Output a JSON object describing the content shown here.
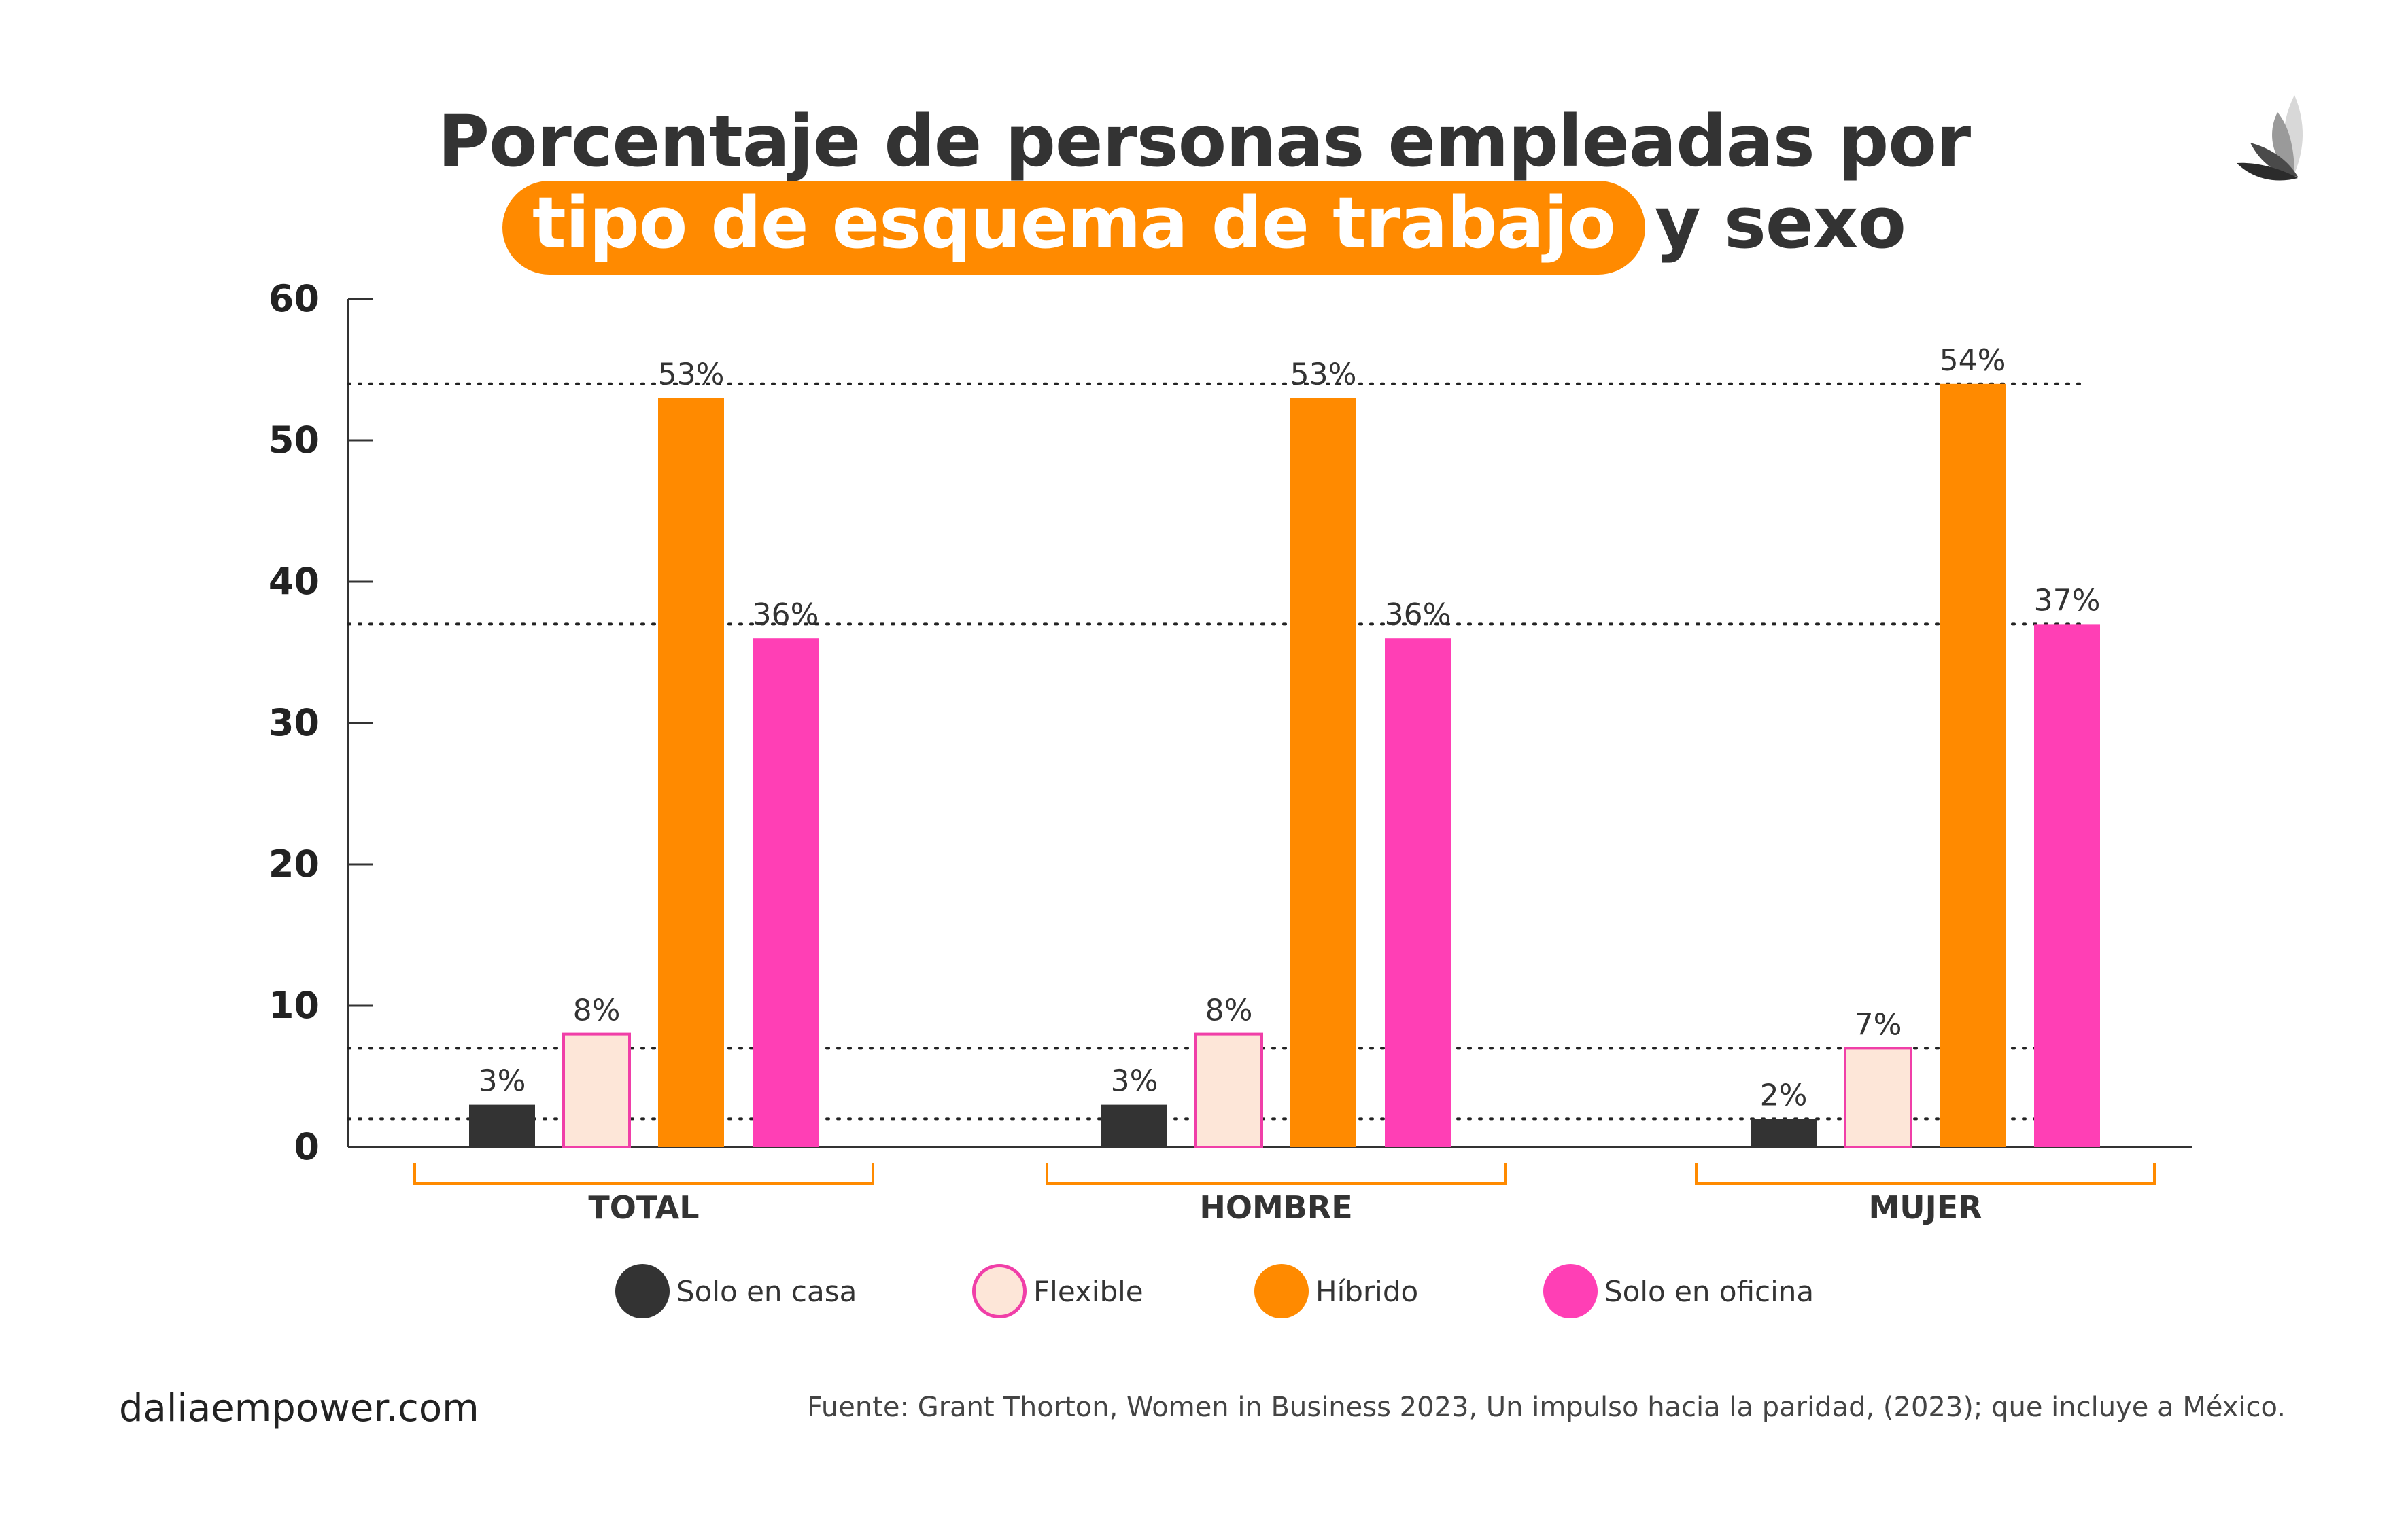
{
  "title": {
    "line1": "Porcentaje de personas empleadas por",
    "highlight": "tipo de esquema de trabajo",
    "rest": "y sexo"
  },
  "colors": {
    "solo_en_casa": "#333333",
    "flexible_fill": "#fde6d8",
    "flexible_stroke": "#f03fa8",
    "hibrido": "#ff8a00",
    "solo_en_oficina": "#ff3fb5",
    "accent": "#ff8a00"
  },
  "chart_data": {
    "type": "bar",
    "categories": [
      "TOTAL",
      "HOMBRE",
      "MUJER"
    ],
    "series": [
      {
        "name": "Solo en casa",
        "values": [
          3,
          3,
          2
        ],
        "labels": [
          "3%",
          "3%",
          "2%"
        ]
      },
      {
        "name": "Flexible",
        "values": [
          8,
          8,
          7
        ],
        "labels": [
          "8%",
          "8%",
          "7%"
        ]
      },
      {
        "name": "Híbrido",
        "values": [
          53,
          53,
          54
        ],
        "labels": [
          "53%",
          "53%",
          "54%"
        ]
      },
      {
        "name": "Solo en oficina",
        "values": [
          36,
          36,
          37
        ],
        "labels": [
          "36%",
          "36%",
          "37%"
        ]
      }
    ],
    "ylim": [
      0,
      60
    ],
    "yticks": [
      0,
      10,
      20,
      30,
      40,
      50,
      60
    ],
    "reference_lines": [
      54,
      37,
      7,
      2
    ],
    "legend_position": "bottom",
    "grid": false
  },
  "footer": {
    "site": "daliaempower.com",
    "source": "Fuente: Grant Thorton, Women in Business 2023, Un impulso hacia la paridad, (2023); que incluye a México."
  },
  "logo": {
    "icon": "leaf-logo-icon"
  }
}
